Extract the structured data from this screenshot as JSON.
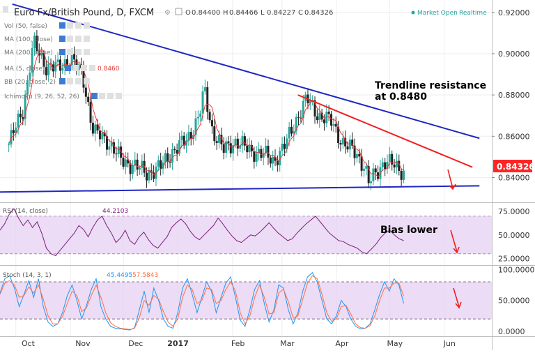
{
  "header": {
    "title": "Euro Fx/British Pound, D, FXCM",
    "ohlc": [
      {
        "k": "O",
        "v": "0.84400"
      },
      {
        "k": "H",
        "v": "0.84466"
      },
      {
        "k": "L",
        "v": "0.84227"
      },
      {
        "k": "C",
        "v": "0.84326"
      }
    ],
    "market_status": "Market Open",
    "realtime_label": "Realtime"
  },
  "indicators": [
    {
      "label": "Vol (50, false)"
    },
    {
      "label": "MA (100, close)"
    },
    {
      "label": "MA (200, close)"
    },
    {
      "label": "MA (5, close)",
      "value": "0.8460",
      "value_color": "#e53935"
    },
    {
      "label": "BB (20, close, 2)"
    },
    {
      "label": "Ichimoku (9, 26, 52, 26)"
    }
  ],
  "annotations": {
    "trend_line1": "Trendline resistance",
    "trend_line2": "at 0.8480",
    "bias": "Bias lower"
  },
  "colors": {
    "up": "#26a69a",
    "down": "#222222",
    "ma": "#e53935",
    "trend": "#1f26c4",
    "resistance": "#f02020",
    "rsi": "#7b1f7b",
    "stoch_k": "#2196f3",
    "stoch_d": "#ff7043",
    "band": "#e6d0f2",
    "last_price_bg": "#ff2525"
  },
  "chart_data": [
    {
      "type": "candlestick",
      "title": "Euro Fx/British Pound, D, FXCM",
      "last_price": "0.84326",
      "y_ticks": [
        "0.92000",
        "0.90000",
        "0.88000",
        "0.86000",
        "0.84000"
      ],
      "ylim": [
        0.828,
        0.926
      ],
      "x_ticks": [
        "Oct",
        "Nov",
        "Dec",
        "2017",
        "Feb",
        "Mar",
        "Apr",
        "May",
        "Jun"
      ],
      "close_series": [
        {
          "date": "Sep 27",
          "close": 0.856
        },
        {
          "date": "Oct 5",
          "close": 0.873
        },
        {
          "date": "Oct 11",
          "close": 0.905
        },
        {
          "date": "Oct 18",
          "close": 0.894
        },
        {
          "date": "Oct 25",
          "close": 0.893
        },
        {
          "date": "Nov 1",
          "close": 0.898
        },
        {
          "date": "Nov 8",
          "close": 0.889
        },
        {
          "date": "Nov 14",
          "close": 0.862
        },
        {
          "date": "Nov 22",
          "close": 0.858
        },
        {
          "date": "Nov 30",
          "close": 0.848
        },
        {
          "date": "Dec 7",
          "close": 0.846
        },
        {
          "date": "Dec 14",
          "close": 0.842
        },
        {
          "date": "Dec 22",
          "close": 0.845
        },
        {
          "date": "Dec 29",
          "close": 0.853
        },
        {
          "date": "Jan 6",
          "close": 0.858
        },
        {
          "date": "Jan 13",
          "close": 0.87
        },
        {
          "date": "Jan 16",
          "close": 0.882
        },
        {
          "date": "Jan 20",
          "close": 0.864
        },
        {
          "date": "Jan 27",
          "close": 0.853
        },
        {
          "date": "Feb 3",
          "close": 0.858
        },
        {
          "date": "Feb 10",
          "close": 0.853
        },
        {
          "date": "Feb 17",
          "close": 0.852
        },
        {
          "date": "Feb 24",
          "close": 0.848
        },
        {
          "date": "Mar 3",
          "close": 0.856
        },
        {
          "date": "Mar 10",
          "close": 0.87
        },
        {
          "date": "Mar 15",
          "close": 0.878
        },
        {
          "date": "Mar 22",
          "close": 0.87
        },
        {
          "date": "Mar 29",
          "close": 0.867
        },
        {
          "date": "Apr 5",
          "close": 0.856
        },
        {
          "date": "Apr 12",
          "close": 0.852
        },
        {
          "date": "Apr 17",
          "close": 0.845
        },
        {
          "date": "Apr 19",
          "close": 0.837
        },
        {
          "date": "Apr 24",
          "close": 0.843
        },
        {
          "date": "Apr 28",
          "close": 0.848
        },
        {
          "date": "May 3",
          "close": 0.846
        },
        {
          "date": "May 9",
          "close": 0.843
        }
      ],
      "trendlines": [
        {
          "name": "upper",
          "from": {
            "date": "Sep 29",
            "price": 0.924
          },
          "to": {
            "date": "Jun 21",
            "price": 0.859
          }
        },
        {
          "name": "resistance",
          "from": {
            "date": "Mar 10",
            "price": 0.88
          },
          "to": {
            "date": "Jun 17",
            "price": 0.845
          }
        },
        {
          "name": "support",
          "from": {
            "date": "Sep 22",
            "price": 0.833
          },
          "to": {
            "date": "Jun 21",
            "price": 0.836
          }
        }
      ]
    },
    {
      "type": "line",
      "title": "RSI (14, close)",
      "value": "44.2103",
      "y_ticks": [
        "75.0000",
        "50.0000",
        "25.0000"
      ],
      "ylim": [
        18,
        84
      ],
      "band": [
        30,
        70
      ],
      "series": [
        {
          "name": "RSI",
          "values": [
            55,
            62,
            72,
            78,
            68,
            60,
            66,
            58,
            64,
            52,
            36,
            30,
            28,
            34,
            40,
            46,
            52,
            60,
            56,
            48,
            58,
            66,
            70,
            60,
            52,
            42,
            47,
            55,
            44,
            40,
            48,
            53,
            45,
            39,
            36,
            42,
            48,
            58,
            63,
            67,
            62,
            54,
            48,
            45,
            50,
            55,
            60,
            68,
            62,
            55,
            49,
            44,
            42,
            46,
            50,
            49,
            53,
            58,
            63,
            57,
            52,
            48,
            44,
            46,
            52,
            57,
            62,
            66,
            70,
            64,
            58,
            52,
            48,
            44,
            43,
            40,
            38,
            36,
            32,
            30,
            35,
            40,
            47,
            52,
            55,
            50,
            46,
            44
          ]
        }
      ]
    },
    {
      "type": "line",
      "title": "Stoch (14, 3, 1)",
      "values": [
        "45.4495",
        "57.5843"
      ],
      "y_ticks": [
        "100.0000",
        "50.0000",
        "0.0000"
      ],
      "ylim": [
        -8,
        106
      ],
      "band": [
        20,
        80
      ],
      "series": [
        {
          "name": "%K",
          "values": [
            62,
            85,
            90,
            70,
            40,
            60,
            82,
            55,
            85,
            40,
            15,
            8,
            12,
            30,
            58,
            75,
            50,
            20,
            42,
            68,
            85,
            40,
            20,
            8,
            5,
            4,
            3,
            2,
            6,
            35,
            65,
            30,
            70,
            50,
            20,
            8,
            5,
            30,
            70,
            85,
            60,
            30,
            55,
            80,
            65,
            30,
            55,
            78,
            88,
            55,
            18,
            8,
            35,
            68,
            82,
            45,
            15,
            35,
            75,
            70,
            35,
            12,
            30,
            65,
            88,
            95,
            80,
            50,
            20,
            12,
            25,
            50,
            40,
            20,
            8,
            4,
            5,
            12,
            35,
            60,
            80,
            65,
            85,
            75,
            45
          ]
        },
        {
          "name": "%D",
          "values": [
            60,
            78,
            82,
            75,
            55,
            58,
            72,
            62,
            75,
            52,
            25,
            12,
            12,
            24,
            45,
            65,
            58,
            32,
            38,
            58,
            75,
            55,
            30,
            14,
            8,
            5,
            4,
            3,
            5,
            22,
            50,
            42,
            58,
            52,
            32,
            15,
            8,
            20,
            55,
            75,
            68,
            45,
            50,
            70,
            68,
            45,
            50,
            68,
            80,
            65,
            30,
            12,
            25,
            55,
            75,
            55,
            28,
            30,
            62,
            68,
            48,
            22,
            25,
            52,
            78,
            90,
            85,
            60,
            30,
            16,
            20,
            40,
            42,
            28,
            12,
            6,
            5,
            9,
            25,
            50,
            70,
            70,
            78,
            78,
            57
          ]
        }
      ]
    }
  ]
}
